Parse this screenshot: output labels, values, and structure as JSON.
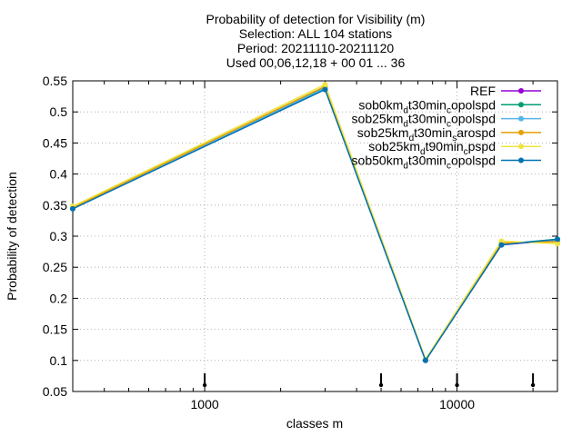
{
  "chart_data": {
    "type": "line",
    "title_lines": [
      "Probability of detection  for Visibility (m)",
      "Selection: ALL    104 stations",
      "Period: 20211110-20211120",
      "Used 00,06,12,18 + 00 01 ... 36"
    ],
    "xlabel": "classes m",
    "ylabel": "Probability of detection",
    "xscale": "log",
    "xlim": [
      300,
      25000
    ],
    "ylim": [
      0.05,
      0.55
    ],
    "xticks": [
      1000,
      10000
    ],
    "xtick_labels": [
      "1000",
      "10000"
    ],
    "yticks": [
      0.05,
      0.1,
      0.15,
      0.2,
      0.25,
      0.3,
      0.35,
      0.4,
      0.45,
      0.5,
      0.55
    ],
    "ytick_labels": [
      "0.05",
      "0.1",
      "0.15",
      "0.2",
      "0.25",
      "0.3",
      "0.35",
      "0.4",
      "0.45",
      "0.5",
      "0.55"
    ],
    "grid": true,
    "legend_position": "top-right",
    "x": [
      300,
      3000,
      7500,
      15000,
      25000
    ],
    "threshold_markers": [
      1000,
      5000,
      10000,
      20000
    ],
    "series": [
      {
        "name": "REF",
        "legend": [
          "REF"
        ],
        "color": "#9400d3",
        "values": [
          0.345,
          0.537,
          0.1,
          0.286,
          0.294
        ]
      },
      {
        "name": "sob0km_dt30min_copolspd",
        "legend": [
          "sob0km",
          "d",
          "t30min",
          "c",
          "opolspd"
        ],
        "color": "#009e73",
        "values": [
          0.347,
          0.54,
          0.101,
          0.287,
          0.295
        ]
      },
      {
        "name": "sob25km_dt30min_copolspd",
        "legend": [
          "sob25km",
          "d",
          "t30min",
          "c",
          "opolspd"
        ],
        "color": "#56b4e9",
        "values": [
          0.346,
          0.538,
          0.1,
          0.287,
          0.294
        ]
      },
      {
        "name": "sob25km_dt30min_sarospd",
        "legend": [
          "sob25km",
          "d",
          "t30min",
          "s",
          "arospd"
        ],
        "color": "#e69f00",
        "values": [
          0.346,
          0.541,
          0.101,
          0.289,
          0.291
        ]
      },
      {
        "name": "sob25km_dt90min_cpspd",
        "legend": [
          "sob25km",
          "d",
          "t90min",
          "c",
          "pspd"
        ],
        "color": "#f0e442",
        "values": [
          0.348,
          0.544,
          0.102,
          0.292,
          0.288
        ]
      },
      {
        "name": "sob50km_dt30min_copolspd",
        "legend": [
          "sob50km",
          "d",
          "t30min",
          "c",
          "opolspd"
        ],
        "color": "#0072b2",
        "values": [
          0.344,
          0.536,
          0.1,
          0.286,
          0.295
        ]
      }
    ]
  }
}
